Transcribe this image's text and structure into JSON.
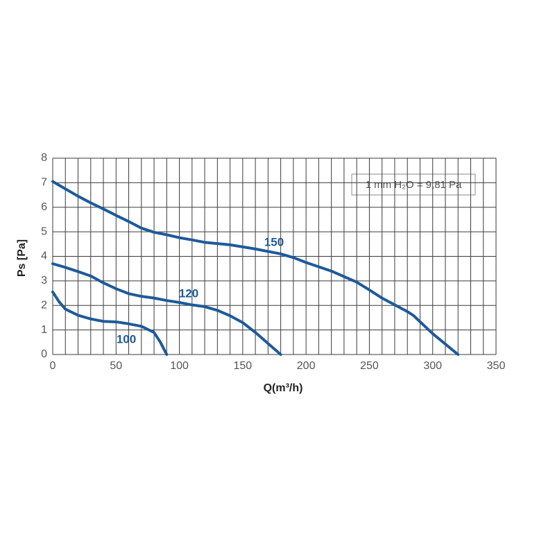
{
  "chart_data": {
    "type": "line",
    "xlabel": "Q(m³/h)",
    "ylabel": "Ps [Pa]",
    "annotation": "1 mm H₂O = 9,81 Pa",
    "xlim": [
      0,
      350
    ],
    "ylim": [
      0,
      8
    ],
    "xticks": [
      0,
      50,
      100,
      150,
      200,
      250,
      300,
      350
    ],
    "yticks": [
      0,
      1,
      2,
      3,
      4,
      5,
      6,
      7,
      8
    ],
    "xgrid": [
      0,
      10,
      20,
      30,
      40,
      50,
      60,
      70,
      80,
      90,
      100,
      110,
      120,
      130,
      140,
      150,
      160,
      170,
      180,
      190,
      200,
      210,
      220,
      230,
      240,
      250,
      260,
      270,
      280,
      290,
      300,
      310,
      320,
      330,
      340,
      350
    ],
    "grid": true,
    "series": [
      {
        "name": "150",
        "color": "#1d5a9b",
        "x": [
          0,
          10,
          20,
          30,
          40,
          50,
          60,
          70,
          80,
          90,
          100,
          110,
          120,
          140,
          160,
          180,
          190,
          200,
          220,
          240,
          250,
          260,
          280,
          285,
          300,
          320
        ],
        "values": [
          7.05,
          6.75,
          6.45,
          6.18,
          5.93,
          5.67,
          5.42,
          5.15,
          4.98,
          4.88,
          4.76,
          4.67,
          4.57,
          4.47,
          4.3,
          4.1,
          3.95,
          3.75,
          3.4,
          2.95,
          2.63,
          2.3,
          1.75,
          1.58,
          0.85,
          0
        ]
      },
      {
        "name": "120",
        "color": "#1d5a9b",
        "x": [
          0,
          10,
          20,
          30,
          40,
          50,
          60,
          70,
          80,
          90,
          100,
          110,
          120,
          130,
          140,
          150,
          160,
          170,
          180
        ],
        "values": [
          3.7,
          3.55,
          3.38,
          3.2,
          2.92,
          2.68,
          2.48,
          2.37,
          2.3,
          2.2,
          2.12,
          2.02,
          1.95,
          1.8,
          1.58,
          1.3,
          0.9,
          0.45,
          0
        ]
      },
      {
        "name": "100",
        "color": "#1d5a9b",
        "x": [
          0,
          5,
          10,
          20,
          30,
          40,
          50,
          60,
          70,
          80,
          85,
          90
        ],
        "values": [
          2.55,
          2.15,
          1.85,
          1.6,
          1.45,
          1.35,
          1.33,
          1.25,
          1.15,
          0.9,
          0.5,
          0
        ]
      }
    ]
  }
}
